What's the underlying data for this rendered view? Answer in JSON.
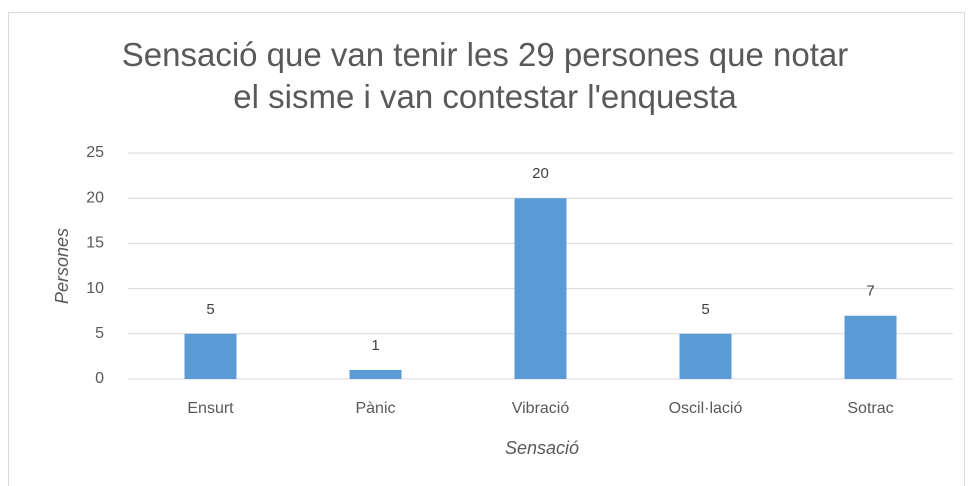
{
  "chart_data": {
    "type": "bar",
    "title": "Sensació que van tenir les 29 persones que notar el sisme i van contestar l'enquesta",
    "x_label": "Sensació",
    "y_label": "Persones",
    "categories": [
      "Ensurt",
      "Pànic",
      "Vibració",
      "Oscil·lació",
      "Sotrac"
    ],
    "values": [
      5,
      1,
      20,
      5,
      7
    ],
    "color": "#5b9bd5",
    "ylim": [
      0,
      25
    ],
    "yticks": [
      0,
      5,
      10,
      15,
      20,
      25
    ],
    "grid": true
  }
}
